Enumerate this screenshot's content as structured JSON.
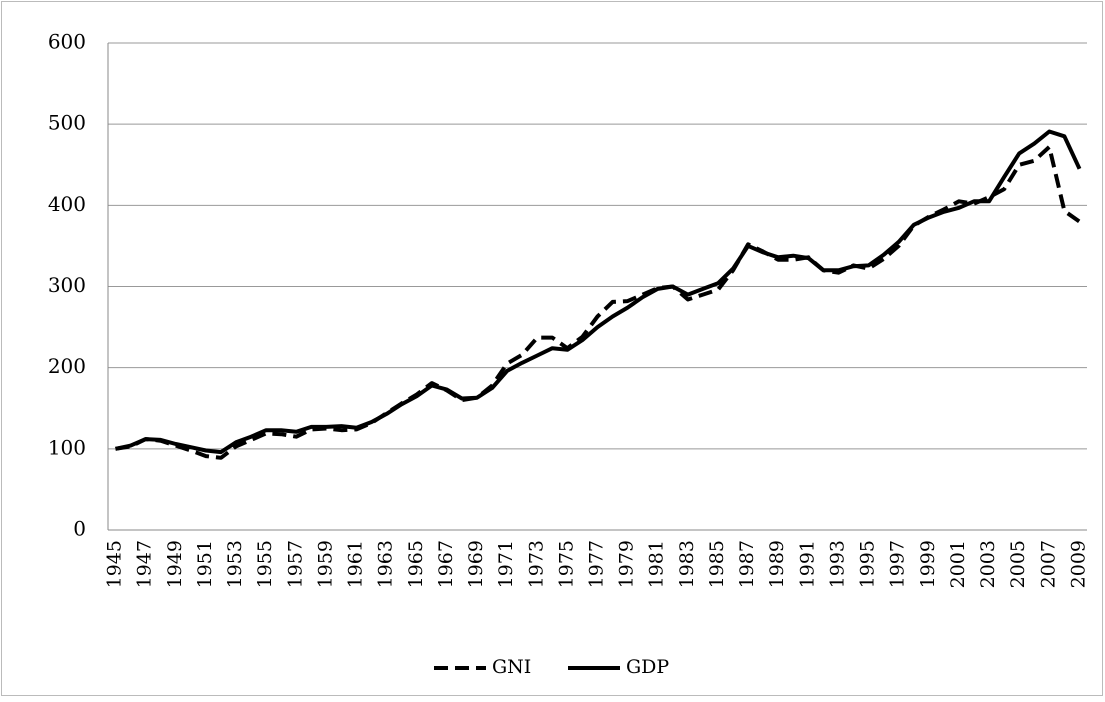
{
  "chart_data": {
    "type": "line",
    "categories": [
      "1945",
      null,
      "1947",
      null,
      "1949",
      null,
      "1951",
      null,
      "1953",
      null,
      "1955",
      null,
      "1957",
      null,
      "1959",
      null,
      "1961",
      null,
      "1963",
      null,
      "1965",
      null,
      "1967",
      null,
      "1969",
      null,
      "1971",
      null,
      "1973",
      null,
      "1975",
      null,
      "1977",
      null,
      "1979",
      null,
      "1981",
      null,
      "1983",
      null,
      "1985",
      null,
      "1987",
      null,
      "1989",
      null,
      "1991",
      null,
      "1993",
      null,
      "1995",
      null,
      "1997",
      null,
      "1999",
      null,
      "2001",
      null,
      "2003",
      null,
      "2005",
      null,
      "2007",
      null,
      "2009"
    ],
    "series": [
      {
        "name": "GNI",
        "color": "#000000",
        "line_style": "dashed",
        "values": [
          100,
          103,
          112,
          110,
          104,
          98,
          91,
          89,
          103,
          111,
          119,
          118,
          115,
          124,
          125,
          123,
          124,
          132,
          144,
          156,
          167,
          181,
          172,
          160,
          163,
          178,
          205,
          216,
          237,
          237,
          224,
          238,
          263,
          281,
          282,
          290,
          298,
          300,
          284,
          290,
          296,
          320,
          352,
          343,
          333,
          333,
          336,
          320,
          317,
          326,
          322,
          334,
          350,
          375,
          386,
          395,
          405,
          402,
          410,
          420,
          450,
          455,
          472,
          393,
          380
        ]
      },
      {
        "name": "GDP",
        "color": "#000000",
        "line_style": "solid",
        "values": [
          100,
          104,
          112,
          111,
          106,
          102,
          98,
          96,
          108,
          115,
          123,
          123,
          121,
          127,
          127,
          128,
          126,
          133,
          143,
          155,
          165,
          178,
          173,
          162,
          163,
          175,
          196,
          206,
          215,
          224,
          222,
          234,
          250,
          263,
          274,
          287,
          297,
          300,
          290,
          297,
          304,
          322,
          350,
          342,
          336,
          338,
          335,
          320,
          320,
          325,
          326,
          339,
          355,
          376,
          385,
          392,
          397,
          405,
          405,
          435,
          464,
          476,
          491,
          485,
          445
        ]
      }
    ],
    "ylim": [
      0,
      600
    ],
    "yticks": [
      0,
      100,
      200,
      300,
      400,
      500,
      600
    ],
    "grid": true,
    "legend": "bottom"
  }
}
